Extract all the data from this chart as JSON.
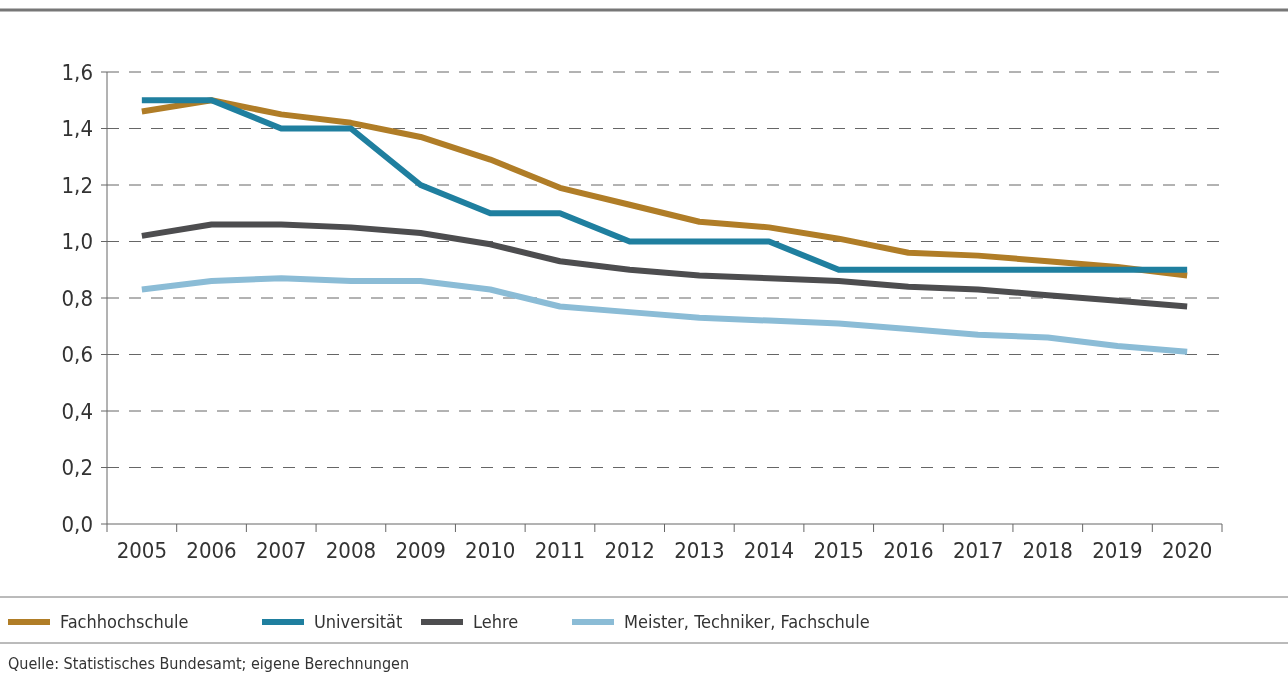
{
  "chart_data": {
    "type": "line",
    "categories": [
      "2005",
      "2006",
      "2007",
      "2008",
      "2009",
      "2010",
      "2011",
      "2012",
      "2013",
      "2014",
      "2015",
      "2016",
      "2017",
      "2018",
      "2019",
      "2020"
    ],
    "series": [
      {
        "name": "Fachhochschule",
        "color": "#b07d27",
        "values": [
          1.46,
          1.5,
          1.45,
          1.42,
          1.37,
          1.29,
          1.19,
          1.13,
          1.07,
          1.05,
          1.01,
          0.96,
          0.95,
          0.93,
          0.91,
          0.88
        ]
      },
      {
        "name": "Universität",
        "color": "#1f7f9f",
        "values": [
          1.5,
          1.5,
          1.4,
          1.4,
          1.2,
          1.1,
          1.1,
          1.0,
          1.0,
          1.0,
          0.9,
          0.9,
          0.9,
          0.9,
          0.9,
          0.9
        ]
      },
      {
        "name": "Lehre",
        "color": "#4d4d4f",
        "values": [
          1.02,
          1.06,
          1.06,
          1.05,
          1.03,
          0.99,
          0.93,
          0.9,
          0.88,
          0.87,
          0.86,
          0.84,
          0.83,
          0.81,
          0.79,
          0.77
        ]
      },
      {
        "name": "Meister, Techniker, Fachschule",
        "color": "#8bbcd6",
        "values": [
          0.83,
          0.86,
          0.87,
          0.86,
          0.86,
          0.83,
          0.77,
          0.75,
          0.73,
          0.72,
          0.71,
          0.69,
          0.67,
          0.66,
          0.63,
          0.61
        ]
      }
    ],
    "ylim": [
      0,
      1.6
    ],
    "yticks": [
      {
        "value": 0,
        "label": "0,0"
      },
      {
        "value": 0.2,
        "label": "0,2"
      },
      {
        "value": 0.4,
        "label": "0,4"
      },
      {
        "value": 0.6,
        "label": "0,6"
      },
      {
        "value": 0.8,
        "label": "0,8"
      },
      {
        "value": 1.0,
        "label": "1,0"
      },
      {
        "value": 1.2,
        "label": "1,2"
      },
      {
        "value": 1.4,
        "label": "1,4"
      },
      {
        "value": 1.6,
        "label": "1,6"
      }
    ],
    "grid": "y",
    "legend": "bottom",
    "line_style": "solid",
    "annotations": [
      "Quelle: Statistisches Bundesamt; eigene Berechnungen"
    ]
  }
}
